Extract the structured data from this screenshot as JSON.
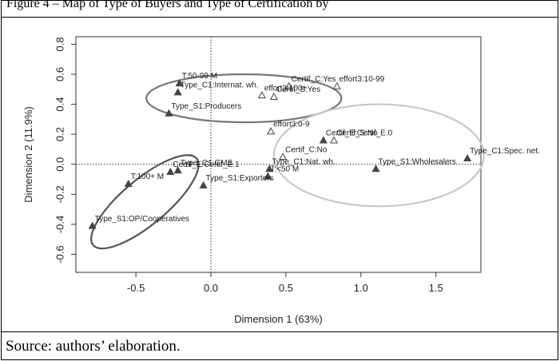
{
  "figure": {
    "caption": "Figure 4 – Map of Type of Buyers and Type of Certification by ",
    "source": "Source: authors’ elaboration."
  },
  "chart_data": {
    "type": "scatter",
    "title": "",
    "xlabel": "Dimension 1 (63%)",
    "ylabel": "Dimension 2 (11.9%)",
    "xlim": [
      -0.9,
      1.8
    ],
    "ylim": [
      -0.72,
      0.85
    ],
    "x_ticks": [
      "-0.5",
      "0.0",
      "0.5",
      "1.0",
      "1.5"
    ],
    "x_tick_values": [
      -0.5,
      0.0,
      0.5,
      1.0,
      1.5
    ],
    "y_ticks": [
      "-0.6",
      "-0.4",
      "-0.2",
      "0.0",
      "0.2",
      "0.4",
      "0.6",
      "0.8"
    ],
    "y_tick_values": [
      -0.6,
      -0.4,
      -0.2,
      0.0,
      0.2,
      0.4,
      0.6,
      0.8
    ],
    "reference_lines": {
      "x": 0,
      "y": 0,
      "style": "dotted"
    },
    "grid": false,
    "series": [
      {
        "marker": "filled-triangle",
        "color": "#444444",
        "points": [
          {
            "x": -0.21,
            "y": 0.54,
            "label": "T:50-99 M"
          },
          {
            "x": -0.22,
            "y": 0.48,
            "label": "Type_C1:Internat. wh."
          },
          {
            "x": -0.28,
            "y": 0.34,
            "label": "Type_S1:Producers"
          },
          {
            "x": 0.75,
            "y": 0.16,
            "label": "Certif_E:Certif_E.0"
          },
          {
            "x": 1.71,
            "y": 0.04,
            "label": "Type_C1:Spec. net."
          },
          {
            "x": 1.1,
            "y": -0.03,
            "label": "Type_S1:Wholesalers"
          },
          {
            "x": 0.39,
            "y": -0.03,
            "label": "Type_C1:Nat. wh."
          },
          {
            "x": 0.38,
            "y": -0.08,
            "label": "T:<50 M"
          },
          {
            "x": -0.05,
            "y": -0.14,
            "label": "Type_S1:Exporters"
          },
          {
            "x": -0.55,
            "y": -0.13,
            "label": "T:100+ M"
          },
          {
            "x": -0.27,
            "y": -0.05,
            "label": "Certif_E:Certif_E.1"
          },
          {
            "x": -0.22,
            "y": -0.04,
            "label": "Type_C1:GMS"
          },
          {
            "x": -0.79,
            "y": -0.41,
            "label": "Type_S1:OP/Cooperatives"
          }
        ]
      },
      {
        "marker": "open-triangle",
        "color": "#444444",
        "points": [
          {
            "x": 0.52,
            "y": 0.52,
            "label": "Certif_C:Yes"
          },
          {
            "x": 0.84,
            "y": 0.52,
            "label": "effort3:10-99"
          },
          {
            "x": 0.34,
            "y": 0.46,
            "label": "effort3:100+"
          },
          {
            "x": 0.42,
            "y": 0.45,
            "label": "Certif_S:Yes"
          },
          {
            "x": 0.4,
            "y": 0.22,
            "label": "effort3:0-9"
          },
          {
            "x": 0.82,
            "y": 0.16,
            "label": "Certif_S:No"
          },
          {
            "x": 0.48,
            "y": 0.05,
            "label": "Certif_C:No"
          }
        ]
      }
    ],
    "clusters": [
      {
        "color": "#777777",
        "center": [
          0.22,
          0.44
        ],
        "radii": [
          0.65,
          0.16
        ]
      },
      {
        "color": "#c8c8c8",
        "center": [
          1.12,
          0.06
        ],
        "radii": [
          0.7,
          0.34
        ]
      },
      {
        "color": "#555555",
        "center": [
          -0.44,
          -0.25
        ],
        "radii": [
          0.45,
          0.15
        ],
        "angle": 40
      }
    ]
  }
}
